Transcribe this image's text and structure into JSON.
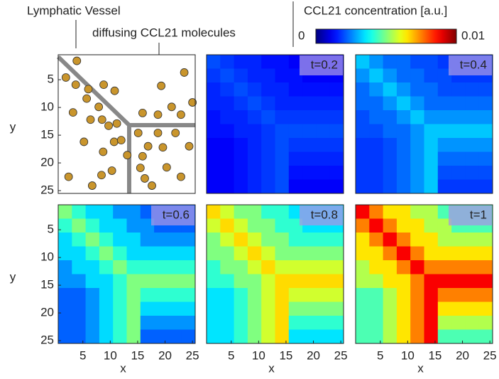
{
  "colorbar": {
    "label": "CCL21 concentration [a.u.]",
    "zlim": [
      0,
      0.01
    ],
    "colormap": "jet"
  },
  "chart_data": [
    {
      "type": "scatter",
      "annotations": [
        "Lymphatic Vessel",
        "diffusing CCL21 molecules"
      ],
      "color": "#c9952c",
      "x": [
        3.9,
        1.9,
        3.7,
        23.5,
        19.3,
        6,
        8.8,
        10.8,
        5.7,
        25,
        21.2,
        3.2,
        15.9,
        7.9,
        8.5,
        18.7,
        22.9,
        6.4,
        11.2,
        9.7,
        15.1,
        18.7,
        21.9,
        5.2,
        10.7,
        12,
        16.9,
        19.6,
        24.4,
        8.7,
        13.1,
        15.9,
        10.3,
        15.5,
        20.3,
        2.4,
        8.4,
        16.3,
        22.9,
        6.7,
        17.6
      ],
      "y": [
        1.6,
        4.6,
        5.9,
        3.7,
        6.1,
        6.7,
        5.9,
        7,
        8.4,
        9.1,
        9.9,
        10.9,
        11,
        9.9,
        12.2,
        11.3,
        11.3,
        12.2,
        12.9,
        13.3,
        14.6,
        14.6,
        14.6,
        16.2,
        16.2,
        15.9,
        17,
        17.2,
        17,
        18,
        18.6,
        18.8,
        21.4,
        20.9,
        20.8,
        22.5,
        22.2,
        22.8,
        22.5,
        24.1,
        24.1
      ],
      "xlim": [
        0.5,
        25.5
      ],
      "ylim": [
        0.5,
        25.5
      ],
      "y_reversed": true,
      "yticks": [
        5,
        10,
        15,
        20,
        25
      ],
      "ylabel": "y"
    },
    {
      "type": "heatmap",
      "title": "t=0.2",
      "xlim": [
        0.5,
        25.5
      ],
      "ylim": [
        0.5,
        25.5
      ],
      "y_reversed": true,
      "z": [
        [
          0.002,
          0.0018,
          0.0016,
          0.0016,
          0.0014,
          0.0014,
          0.0012,
          0.0012,
          0.0012,
          0.0012
        ],
        [
          0.0018,
          0.002,
          0.0018,
          0.0016,
          0.0016,
          0.0014,
          0.0014,
          0.0012,
          0.0012,
          0.0012
        ],
        [
          0.0016,
          0.0018,
          0.002,
          0.0018,
          0.0016,
          0.0016,
          0.0014,
          0.0014,
          0.0014,
          0.0014
        ],
        [
          0.0016,
          0.0016,
          0.0018,
          0.002,
          0.0018,
          0.0016,
          0.0016,
          0.0016,
          0.0016,
          0.0016
        ],
        [
          0.0014,
          0.0016,
          0.0016,
          0.0018,
          0.002,
          0.0018,
          0.0018,
          0.0018,
          0.0018,
          0.0018
        ],
        [
          0.0014,
          0.0014,
          0.0016,
          0.0016,
          0.0018,
          0.002,
          0.002,
          0.002,
          0.002,
          0.002
        ],
        [
          0.0012,
          0.0012,
          0.0014,
          0.0016,
          0.0018,
          0.002,
          0.0018,
          0.0018,
          0.0018,
          0.0018
        ],
        [
          0.0012,
          0.0012,
          0.0014,
          0.0016,
          0.0018,
          0.002,
          0.0016,
          0.0016,
          0.0016,
          0.0016
        ],
        [
          0.0012,
          0.0012,
          0.0014,
          0.0016,
          0.0018,
          0.002,
          0.0014,
          0.0014,
          0.0014,
          0.0014
        ],
        [
          0.0012,
          0.0012,
          0.0014,
          0.0016,
          0.0018,
          0.002,
          0.0012,
          0.0012,
          0.0012,
          0.0012
        ]
      ]
    },
    {
      "type": "heatmap",
      "title": "t=0.4",
      "xlim": [
        0.5,
        25.5
      ],
      "ylim": [
        0.5,
        25.5
      ],
      "y_reversed": true,
      "z": [
        [
          0.0032,
          0.0027,
          0.0023,
          0.0023,
          0.002,
          0.002,
          0.0018,
          0.0018,
          0.0018,
          0.0018
        ],
        [
          0.0027,
          0.0032,
          0.0027,
          0.0023,
          0.0023,
          0.002,
          0.002,
          0.0018,
          0.0018,
          0.0018
        ],
        [
          0.0023,
          0.0027,
          0.0032,
          0.0027,
          0.0023,
          0.0023,
          0.002,
          0.002,
          0.002,
          0.002
        ],
        [
          0.0023,
          0.0023,
          0.0027,
          0.0032,
          0.0027,
          0.0023,
          0.0023,
          0.0023,
          0.0023,
          0.0023
        ],
        [
          0.002,
          0.0023,
          0.0023,
          0.0027,
          0.0032,
          0.0027,
          0.0027,
          0.0027,
          0.0027,
          0.0027
        ],
        [
          0.002,
          0.002,
          0.0023,
          0.0023,
          0.0027,
          0.0032,
          0.0032,
          0.0032,
          0.0032,
          0.0032
        ],
        [
          0.0018,
          0.0018,
          0.002,
          0.0023,
          0.0027,
          0.0032,
          0.0027,
          0.0027,
          0.0027,
          0.0027
        ],
        [
          0.0018,
          0.0018,
          0.002,
          0.0023,
          0.0027,
          0.0032,
          0.0023,
          0.0023,
          0.0023,
          0.0023
        ],
        [
          0.0018,
          0.0018,
          0.002,
          0.0023,
          0.0027,
          0.0032,
          0.002,
          0.002,
          0.002,
          0.002
        ],
        [
          0.0018,
          0.0018,
          0.002,
          0.0023,
          0.0027,
          0.0032,
          0.0018,
          0.0018,
          0.0018,
          0.0018
        ]
      ]
    },
    {
      "type": "heatmap",
      "title": "t=0.6",
      "xlim": [
        0.5,
        25.5
      ],
      "ylim": [
        0.5,
        25.5
      ],
      "y_reversed": true,
      "yticks": [
        5,
        10,
        15,
        20,
        25
      ],
      "ylabel": "y",
      "xticks": [
        5,
        10,
        15,
        20,
        25
      ],
      "xlabel": "x",
      "z": [
        [
          0.005,
          0.0042,
          0.0034,
          0.0034,
          0.0027,
          0.0027,
          0.0022,
          0.0022,
          0.0022,
          0.0022
        ],
        [
          0.0042,
          0.005,
          0.0042,
          0.0034,
          0.0034,
          0.0027,
          0.0027,
          0.0022,
          0.0022,
          0.0022
        ],
        [
          0.0034,
          0.0042,
          0.005,
          0.0042,
          0.0034,
          0.0034,
          0.0027,
          0.0027,
          0.0027,
          0.0027
        ],
        [
          0.0034,
          0.0034,
          0.0042,
          0.005,
          0.0042,
          0.0034,
          0.0034,
          0.0034,
          0.0034,
          0.0034
        ],
        [
          0.0027,
          0.0034,
          0.0034,
          0.0042,
          0.005,
          0.0042,
          0.0042,
          0.0042,
          0.0042,
          0.0042
        ],
        [
          0.0027,
          0.0027,
          0.0034,
          0.0034,
          0.0042,
          0.005,
          0.005,
          0.005,
          0.005,
          0.005
        ],
        [
          0.0022,
          0.0022,
          0.0027,
          0.0034,
          0.0042,
          0.005,
          0.0042,
          0.0042,
          0.0042,
          0.0042
        ],
        [
          0.0022,
          0.0022,
          0.0027,
          0.0034,
          0.0042,
          0.005,
          0.0034,
          0.0034,
          0.0034,
          0.0034
        ],
        [
          0.0022,
          0.0022,
          0.0027,
          0.0034,
          0.0042,
          0.005,
          0.0027,
          0.0027,
          0.0027,
          0.0027
        ],
        [
          0.0022,
          0.0022,
          0.0027,
          0.0034,
          0.0042,
          0.005,
          0.0022,
          0.0022,
          0.0022,
          0.0022
        ]
      ]
    },
    {
      "type": "heatmap",
      "title": "t=0.8",
      "xlim": [
        0.5,
        25.5
      ],
      "ylim": [
        0.5,
        25.5
      ],
      "y_reversed": true,
      "xticks": [
        5,
        10,
        15,
        20,
        25
      ],
      "xlabel": "x",
      "z": [
        [
          0.0066,
          0.0058,
          0.005,
          0.005,
          0.0042,
          0.0042,
          0.0035,
          0.0035,
          0.0035,
          0.0035
        ],
        [
          0.0058,
          0.0066,
          0.0058,
          0.005,
          0.005,
          0.0042,
          0.0042,
          0.0035,
          0.0035,
          0.0035
        ],
        [
          0.005,
          0.0058,
          0.0066,
          0.0058,
          0.005,
          0.005,
          0.0042,
          0.0042,
          0.0042,
          0.0042
        ],
        [
          0.005,
          0.005,
          0.0058,
          0.0066,
          0.0058,
          0.005,
          0.005,
          0.005,
          0.005,
          0.005
        ],
        [
          0.0042,
          0.005,
          0.005,
          0.0058,
          0.0066,
          0.0058,
          0.0058,
          0.0058,
          0.0058,
          0.0058
        ],
        [
          0.0042,
          0.0042,
          0.005,
          0.005,
          0.0058,
          0.0066,
          0.0066,
          0.0066,
          0.0066,
          0.0066
        ],
        [
          0.0035,
          0.0035,
          0.0042,
          0.005,
          0.0058,
          0.0066,
          0.0058,
          0.0058,
          0.0058,
          0.0058
        ],
        [
          0.0035,
          0.0035,
          0.0042,
          0.005,
          0.0058,
          0.0066,
          0.005,
          0.005,
          0.005,
          0.005
        ],
        [
          0.0035,
          0.0035,
          0.0042,
          0.005,
          0.0058,
          0.0066,
          0.0042,
          0.0042,
          0.0042,
          0.0042
        ],
        [
          0.0035,
          0.0035,
          0.0042,
          0.005,
          0.0058,
          0.0066,
          0.0035,
          0.0035,
          0.0035,
          0.0035
        ]
      ]
    },
    {
      "type": "heatmap",
      "title": "t=1",
      "xlim": [
        0.5,
        25.5
      ],
      "ylim": [
        0.5,
        25.5
      ],
      "y_reversed": true,
      "xticks": [
        5,
        10,
        15,
        20,
        25
      ],
      "xlabel": "x",
      "z": [
        [
          0.0088,
          0.0075,
          0.0065,
          0.0065,
          0.0055,
          0.0055,
          0.0045,
          0.0045,
          0.0045,
          0.0045
        ],
        [
          0.0075,
          0.0088,
          0.0075,
          0.0065,
          0.0065,
          0.0055,
          0.0055,
          0.0045,
          0.0045,
          0.0045
        ],
        [
          0.0065,
          0.0075,
          0.0088,
          0.0075,
          0.0065,
          0.0065,
          0.0055,
          0.0055,
          0.0055,
          0.0055
        ],
        [
          0.0065,
          0.0065,
          0.0075,
          0.0088,
          0.0075,
          0.0065,
          0.0065,
          0.0065,
          0.0065,
          0.0065
        ],
        [
          0.0055,
          0.0065,
          0.0065,
          0.0075,
          0.0088,
          0.0075,
          0.0075,
          0.0075,
          0.0075,
          0.0075
        ],
        [
          0.0055,
          0.0055,
          0.0065,
          0.0065,
          0.0075,
          0.0088,
          0.0088,
          0.0088,
          0.0088,
          0.0088
        ],
        [
          0.0045,
          0.0045,
          0.0055,
          0.0065,
          0.0075,
          0.0088,
          0.0075,
          0.0075,
          0.0075,
          0.0075
        ],
        [
          0.0045,
          0.0045,
          0.0055,
          0.0065,
          0.0075,
          0.0088,
          0.0065,
          0.0065,
          0.0065,
          0.0065
        ],
        [
          0.0045,
          0.0045,
          0.0055,
          0.0065,
          0.0075,
          0.0088,
          0.0055,
          0.0055,
          0.0055,
          0.0055
        ],
        [
          0.0045,
          0.0045,
          0.0055,
          0.0065,
          0.0075,
          0.0088,
          0.0045,
          0.0045,
          0.0045,
          0.0045
        ]
      ]
    }
  ]
}
